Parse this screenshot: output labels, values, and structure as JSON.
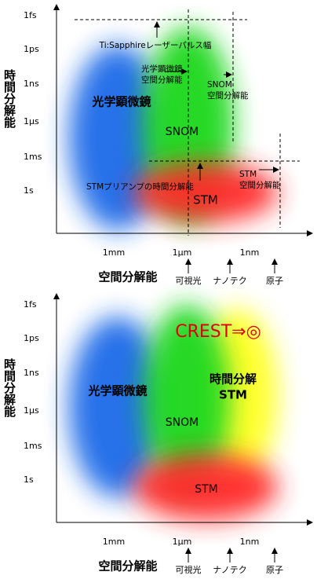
{
  "panels": [
    {
      "y_axis_label": "時間分解能",
      "x_axis_label": "空間分解能",
      "y_ticks": [
        "1fs",
        "1ps",
        "1ns",
        "1µs",
        "1ms",
        "1s"
      ],
      "x_ticks": [
        "1mm",
        "1µm",
        "1nm"
      ],
      "markers": [
        "可視光",
        "ナノテク",
        "原子"
      ],
      "regions": [
        {
          "lines": [
            "光学顕微鏡"
          ]
        },
        {
          "lines": [
            "SNOM"
          ]
        },
        {
          "lines": [
            "STM"
          ]
        }
      ],
      "annotations": [
        {
          "lines": [
            "Ti:Sapphireレーザーパルス幅"
          ]
        },
        {
          "lines": [
            "光学顕微鏡",
            "空間分解能"
          ]
        },
        {
          "lines": [
            "SNOM",
            "空間分解能"
          ]
        },
        {
          "lines": [
            "STMプリアンプの時間分解能"
          ]
        },
        {
          "lines": [
            "STM",
            "空間分解能"
          ]
        }
      ]
    },
    {
      "y_axis_label": "時間分解能",
      "x_axis_label": "空間分解能",
      "y_ticks": [
        "1fs",
        "1ps",
        "1ns",
        "1µs",
        "1ms",
        "1s"
      ],
      "x_ticks": [
        "1mm",
        "1µm",
        "1nm"
      ],
      "markers": [
        "可視光",
        "ナノテク",
        "原子"
      ],
      "regions": [
        {
          "lines": [
            "光学顕微鏡"
          ]
        },
        {
          "lines": [
            "SNOM"
          ]
        },
        {
          "lines": [
            "時間分解",
            "STM"
          ]
        },
        {
          "lines": [
            "STM"
          ]
        }
      ],
      "headline": "CREST⇒◎"
    }
  ]
}
